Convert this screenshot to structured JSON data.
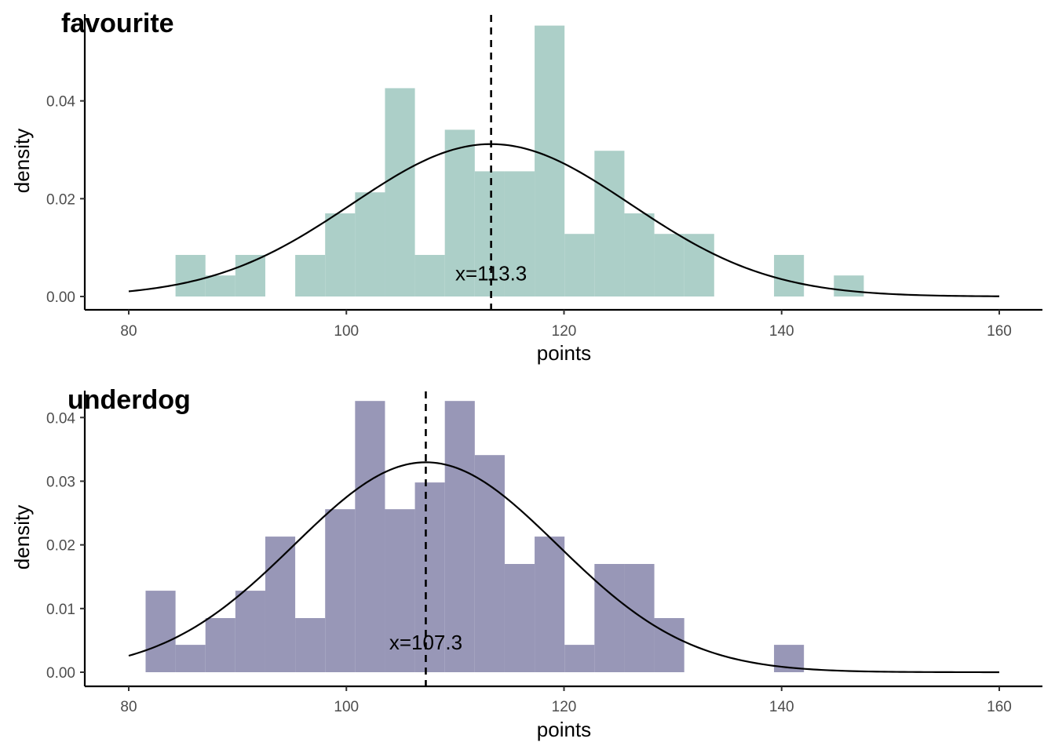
{
  "chart_data": [
    {
      "type": "bar",
      "subtype": "histogram",
      "title": "favourite",
      "xlabel": "points",
      "ylabel": "density",
      "xlim": [
        80,
        160
      ],
      "ylim": [
        0,
        0.0555
      ],
      "xticks": [
        80,
        100,
        120,
        140,
        160
      ],
      "xtick_labels": [
        "80",
        "100",
        "120",
        "140",
        "160"
      ],
      "yticks": [
        0,
        0.02,
        0.04
      ],
      "ytick_labels": [
        "0.00",
        "0.02",
        "0.04"
      ],
      "grid": false,
      "fill_color": "#accfc8",
      "bin_width": 2.75,
      "bins": [
        {
          "x0": 84.3,
          "x1": 87.05,
          "density": 0.0085
        },
        {
          "x0": 87.05,
          "x1": 89.8,
          "density": 0.0043
        },
        {
          "x0": 89.8,
          "x1": 92.55,
          "density": 0.0085
        },
        {
          "x0": 95.3,
          "x1": 98.05,
          "density": 0.0085
        },
        {
          "x0": 98.05,
          "x1": 100.8,
          "density": 0.017
        },
        {
          "x0": 100.8,
          "x1": 103.55,
          "density": 0.0213
        },
        {
          "x0": 103.55,
          "x1": 106.3,
          "density": 0.0426
        },
        {
          "x0": 106.3,
          "x1": 109.05,
          "density": 0.0085
        },
        {
          "x0": 109.05,
          "x1": 111.8,
          "density": 0.0341
        },
        {
          "x0": 111.8,
          "x1": 114.55,
          "density": 0.0256
        },
        {
          "x0": 114.55,
          "x1": 117.3,
          "density": 0.0256
        },
        {
          "x0": 117.3,
          "x1": 120.05,
          "density": 0.0554
        },
        {
          "x0": 120.05,
          "x1": 122.8,
          "density": 0.0128
        },
        {
          "x0": 122.8,
          "x1": 125.55,
          "density": 0.0298
        },
        {
          "x0": 125.55,
          "x1": 128.3,
          "density": 0.017
        },
        {
          "x0": 128.3,
          "x1": 131.05,
          "density": 0.0128
        },
        {
          "x0": 131.05,
          "x1": 133.8,
          "density": 0.0128
        },
        {
          "x0": 139.3,
          "x1": 142.05,
          "density": 0.0085
        },
        {
          "x0": 144.8,
          "x1": 147.55,
          "density": 0.0043
        }
      ],
      "normal_curve": {
        "mean": 113.3,
        "sd": 12.8,
        "x_range": [
          80,
          160
        ]
      },
      "mean_line": {
        "x": 113.3,
        "style": "dashed"
      },
      "annotation": {
        "text": "x=113.3",
        "x": 113.3,
        "y": 0.0047
      }
    },
    {
      "type": "bar",
      "subtype": "histogram",
      "title": "underdog",
      "xlabel": "points",
      "ylabel": "density",
      "xlim": [
        80,
        160
      ],
      "ylim": [
        0,
        0.0425
      ],
      "xticks": [
        80,
        100,
        120,
        140,
        160
      ],
      "xtick_labels": [
        "80",
        "100",
        "120",
        "140",
        "160"
      ],
      "yticks": [
        0,
        0.01,
        0.02,
        0.03,
        0.04
      ],
      "ytick_labels": [
        "0.00",
        "0.01",
        "0.02",
        "0.03",
        "0.04"
      ],
      "grid": false,
      "fill_color": "#9897b7",
      "bin_width": 2.75,
      "bins": [
        {
          "x0": 81.55,
          "x1": 84.3,
          "density": 0.0128
        },
        {
          "x0": 84.3,
          "x1": 87.05,
          "density": 0.0043
        },
        {
          "x0": 87.05,
          "x1": 89.8,
          "density": 0.0085
        },
        {
          "x0": 89.8,
          "x1": 92.55,
          "density": 0.0128
        },
        {
          "x0": 92.55,
          "x1": 95.3,
          "density": 0.0213
        },
        {
          "x0": 95.3,
          "x1": 98.05,
          "density": 0.0085
        },
        {
          "x0": 98.05,
          "x1": 100.8,
          "density": 0.0256
        },
        {
          "x0": 100.8,
          "x1": 103.55,
          "density": 0.0426
        },
        {
          "x0": 103.55,
          "x1": 106.3,
          "density": 0.0256
        },
        {
          "x0": 106.3,
          "x1": 109.05,
          "density": 0.0298
        },
        {
          "x0": 109.05,
          "x1": 111.8,
          "density": 0.0426
        },
        {
          "x0": 111.8,
          "x1": 114.55,
          "density": 0.0341
        },
        {
          "x0": 114.55,
          "x1": 117.3,
          "density": 0.017
        },
        {
          "x0": 117.3,
          "x1": 120.05,
          "density": 0.0213
        },
        {
          "x0": 120.05,
          "x1": 122.8,
          "density": 0.0043
        },
        {
          "x0": 122.8,
          "x1": 125.55,
          "density": 0.017
        },
        {
          "x0": 125.55,
          "x1": 128.3,
          "density": 0.017
        },
        {
          "x0": 128.3,
          "x1": 131.05,
          "density": 0.0085
        },
        {
          "x0": 139.3,
          "x1": 142.05,
          "density": 0.0043
        }
      ],
      "normal_curve": {
        "mean": 107.3,
        "sd": 12.1,
        "x_range": [
          80,
          160
        ]
      },
      "mean_line": {
        "x": 107.3,
        "style": "dashed"
      },
      "annotation": {
        "text": "x=107.3",
        "x": 107.3,
        "y": 0.0047
      }
    }
  ]
}
